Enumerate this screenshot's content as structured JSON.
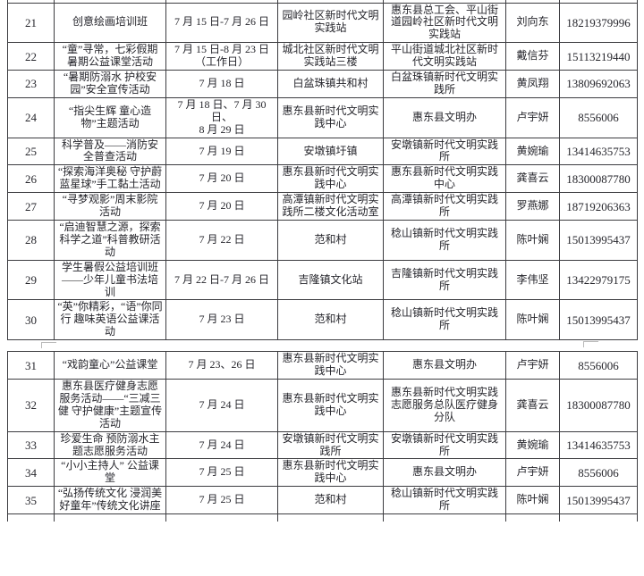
{
  "document": {
    "background": "#ffffff",
    "text_color": "#26262c",
    "grid_color": "#3c3c40"
  },
  "column_keys": [
    "num",
    "activity",
    "date",
    "location",
    "organizer",
    "contact",
    "phone"
  ],
  "tables": {
    "upper": {
      "rows": [
        {
          "num": "21",
          "activity": "创意绘画培训班",
          "date": "7 月 15 日-7 月 26 日",
          "location": "园岭社区新时代文明实践站",
          "organizer": "惠东县总工会、平山街道园岭社区新时代文明实践站",
          "contact": "刘向东",
          "phone": "18219379996"
        },
        {
          "num": "22",
          "activity": "“童”寻常，七彩假期暑期公益课堂活动",
          "date": "7 月 15 日-8 月 23 日\n（工作日）",
          "location": "城北社区新时代文明实践站三楼",
          "organizer": "平山街道城北社区新时代文明实践站",
          "contact": "戴信芬",
          "phone": "15113219440"
        },
        {
          "num": "23",
          "activity": "“暑期防溺水 护校安园”安全宣传活动",
          "date": "7 月 18 日",
          "location": "白盆珠镇共和村",
          "organizer": "白盆珠镇新时代文明实践所",
          "contact": "黄凤翔",
          "phone": "13809692063"
        },
        {
          "num": "24",
          "activity": "“指尖生辉 童心造物”主题活动",
          "date": "7 月 18 日、7 月 30 日、\n8 月 29 日",
          "location": "惠东县新时代文明实践中心",
          "organizer": "惠东县文明办",
          "contact": "卢宇妍",
          "phone": "8556006"
        },
        {
          "num": "25",
          "activity": "科学普及——消防安全普查活动",
          "date": "7 月 19 日",
          "location": "安墩镇圩镇",
          "organizer": "安墩镇新时代文明实践所",
          "contact": "黄婉瑜",
          "phone": "13414635753"
        },
        {
          "num": "26",
          "activity": "“探索海洋奥秘 守护蔚蓝星球”手工黏土活动",
          "date": "7 月 20 日",
          "location": "惠东县新时代文明实践中心",
          "organizer": "惠东县新时代文明实践中心",
          "contact": "龚喜云",
          "phone": "18300087780"
        },
        {
          "num": "27",
          "activity": "“寻梦观影”周末影院活动",
          "date": "7 月 20 日",
          "location": "高潭镇新时代文明实践所二楼文化活动室",
          "organizer": "高潭镇新时代文明实践所",
          "contact": "罗燕娜",
          "phone": "18719206363"
        },
        {
          "num": "28",
          "activity": "“启迪智慧之源，探索科学之道”科普教研活动",
          "date": "7 月 22 日",
          "location": "范和村",
          "organizer": "稔山镇新时代文明实践所",
          "contact": "陈叶娴",
          "phone": "15013995437"
        },
        {
          "num": "29",
          "activity": "学生暑假公益培训班——少年儿童书法培训",
          "date": "7 月 22 日-7 月 26 日",
          "location": "吉隆镇文化站",
          "organizer": "吉隆镇新时代文明实践所",
          "contact": "李伟坚",
          "phone": "13422979175"
        },
        {
          "num": "30",
          "activity": "“英”你精彩，“语”你同行 趣味英语公益课活动",
          "date": "7 月 23 日",
          "location": "范和村",
          "organizer": "稔山镇新时代文明实践所",
          "contact": "陈叶娴",
          "phone": "15013995437"
        }
      ]
    },
    "lower": {
      "rows": [
        {
          "num": "31",
          "activity": "“戏韵童心”公益课堂",
          "date": "7 月 23、26 日",
          "location": "惠东县新时代文明实践中心",
          "organizer": "惠东县文明办",
          "contact": "卢宇妍",
          "phone": "8556006"
        },
        {
          "num": "32",
          "activity": "惠东县医疗健身志愿服务活动——“三减三健 守护健康”主题宣传活动",
          "date": "7 月 24 日",
          "location": "惠东县新时代文明实践中心",
          "organizer": "惠东县新时代文明实践志愿服务总队医疗健身分队",
          "contact": "龚喜云",
          "phone": "18300087780"
        },
        {
          "num": "33",
          "activity": "珍爱生命 预防溺水主题志愿服务活动",
          "date": "7 月 24 日",
          "location": "安墩镇新时代文明实践所",
          "organizer": "安墩镇新时代文明实践所",
          "contact": "黄婉瑜",
          "phone": "13414635753"
        },
        {
          "num": "34",
          "activity": "“小小主持人” 公益课堂",
          "date": "7 月 25 日",
          "location": "惠东县新时代文明实践中心",
          "organizer": "惠东县文明办",
          "contact": "卢宇妍",
          "phone": "8556006"
        },
        {
          "num": "35",
          "activity": "“弘扬传统文化 浸润美好童年”传统文化讲座",
          "date": "7 月 25 日",
          "location": "范和村",
          "organizer": "稔山镇新时代文明实践所",
          "contact": "陈叶娴",
          "phone": "15013995437"
        }
      ]
    }
  }
}
